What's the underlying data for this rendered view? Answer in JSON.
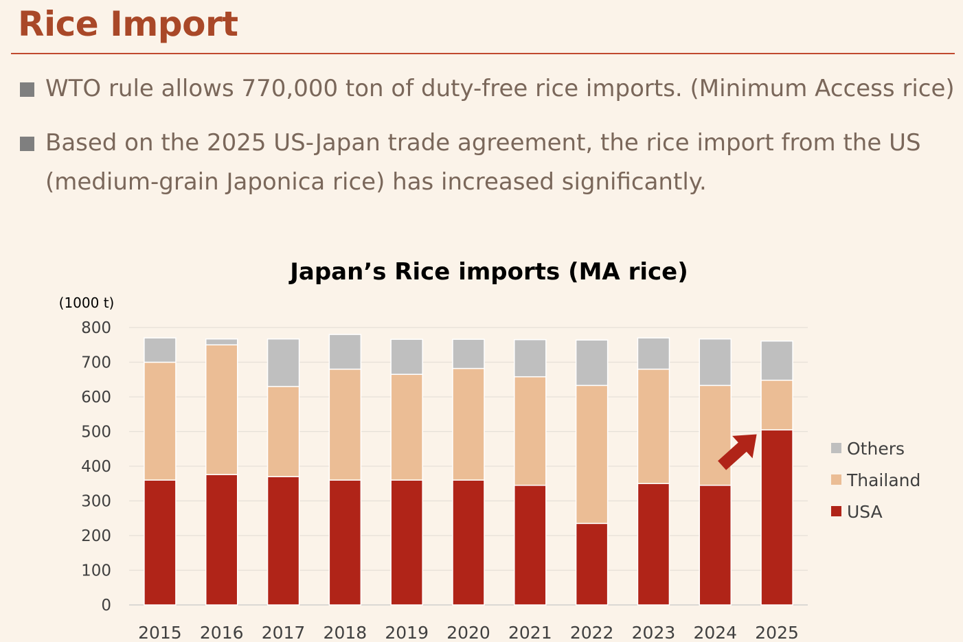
{
  "page": {
    "title": "Rice Import",
    "bullets": [
      "WTO rule allows 770,000 ton of duty-free rice imports. (Minimum Access rice)",
      "Based on the 2025 US-Japan trade agreement, the rice import from the US (medium-grain Japonica rice) has increased significantly."
    ]
  },
  "chart_data": {
    "type": "bar",
    "stacked": true,
    "title": "Japan’s Rice imports (MA rice)",
    "unit_label": "(1000 t)",
    "categories": [
      "2015",
      "2016",
      "2017",
      "2018",
      "2019",
      "2020",
      "2021",
      "2022",
      "2023",
      "2024",
      "2025"
    ],
    "series": [
      {
        "name": "USA",
        "color": "#b02418",
        "values": [
          360,
          376,
          370,
          360,
          360,
          360,
          345,
          235,
          350,
          345,
          505
        ]
      },
      {
        "name": "Thailand",
        "color": "#ebbd95",
        "values": [
          340,
          374,
          260,
          320,
          305,
          322,
          313,
          398,
          330,
          288,
          143
        ]
      },
      {
        "name": "Others",
        "color": "#bfbfbf",
        "values": [
          70,
          17,
          137,
          100,
          101,
          84,
          107,
          131,
          90,
          134,
          113
        ]
      }
    ],
    "legend_order": [
      "Others",
      "Thailand",
      "USA"
    ],
    "legend_position": "right",
    "ylim": [
      0,
      800
    ],
    "yticks": [
      0,
      100,
      200,
      300,
      400,
      500,
      600,
      700,
      800
    ],
    "grid": true,
    "annotation": {
      "type": "arrow",
      "target_category": "2025",
      "color": "#b02418",
      "meaning": "increase"
    }
  }
}
